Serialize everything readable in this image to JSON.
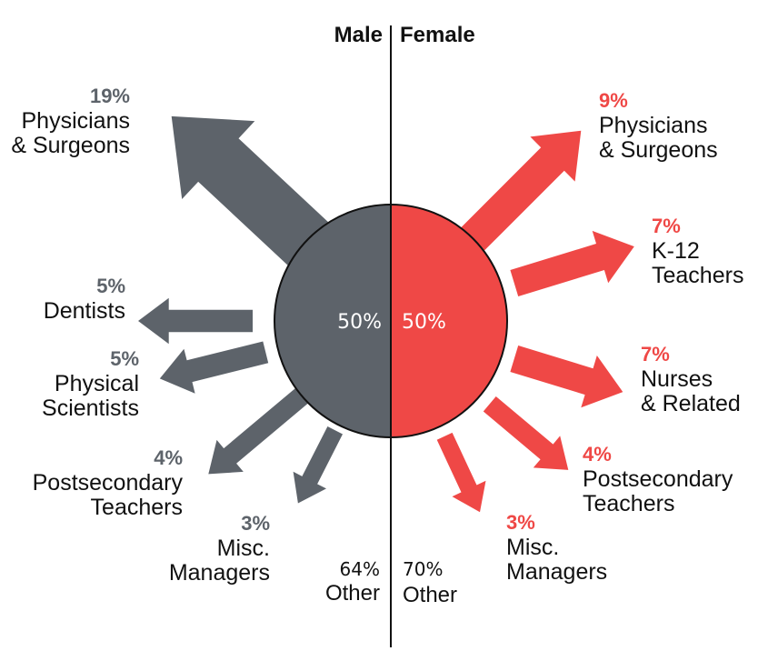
{
  "chart_data": {
    "type": "radial-arrow",
    "headers": {
      "male": "Male",
      "female": "Female"
    },
    "colors": {
      "male": "#5d636a",
      "female": "#ef4846",
      "divider": "#111111",
      "male_pct_text": "#5d636a",
      "female_pct_text": "#ef4846"
    },
    "center": {
      "male_pct": "50%",
      "female_pct": "50%"
    },
    "series": [
      {
        "name": "Male",
        "categories": [
          {
            "pct": "19%",
            "lines": [
              "Physicians",
              "& Surgeons"
            ],
            "value": 19
          },
          {
            "pct": "5%",
            "lines": [
              "Dentists"
            ],
            "value": 5
          },
          {
            "pct": "5%",
            "lines": [
              "Physical",
              "Scientists"
            ],
            "value": 5
          },
          {
            "pct": "4%",
            "lines": [
              "Postsecondary",
              "Teachers"
            ],
            "value": 4
          },
          {
            "pct": "3%",
            "lines": [
              "Misc.",
              "Managers"
            ],
            "value": 3
          }
        ],
        "other": {
          "pct": "64%",
          "label": "Other",
          "value": 64
        }
      },
      {
        "name": "Female",
        "categories": [
          {
            "pct": "9%",
            "lines": [
              "Physicians",
              "& Surgeons"
            ],
            "value": 9
          },
          {
            "pct": "7%",
            "lines": [
              "K-12",
              "Teachers"
            ],
            "value": 7
          },
          {
            "pct": "7%",
            "lines": [
              "Nurses",
              "& Related"
            ],
            "value": 7
          },
          {
            "pct": "4%",
            "lines": [
              "Postsecondary",
              "Teachers"
            ],
            "value": 4
          },
          {
            "pct": "3%",
            "lines": [
              "Misc.",
              "Managers"
            ],
            "value": 3
          }
        ],
        "other": {
          "pct": "70%",
          "label": "Other",
          "value": 70
        }
      }
    ]
  }
}
